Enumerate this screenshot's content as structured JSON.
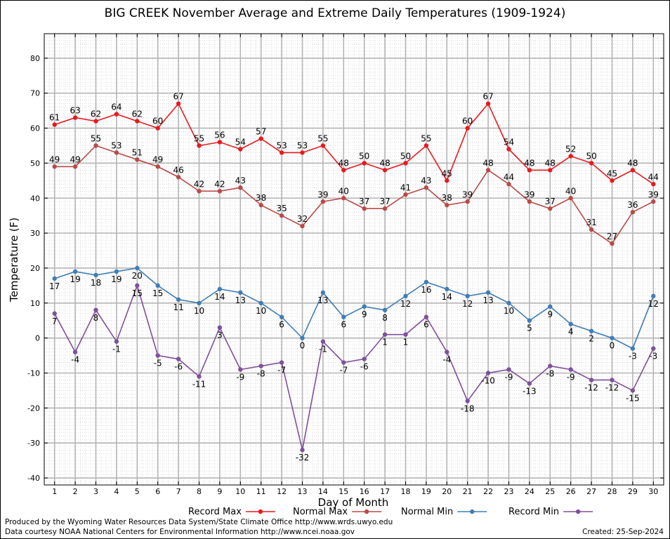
{
  "chart_data": {
    "type": "line",
    "title": "BIG CREEK November Average and Extreme Daily Temperatures (1909-1924)",
    "xlabel": "Day of Month",
    "ylabel": "Temperature (F)",
    "xlim": [
      0.5,
      30.5
    ],
    "ylim": [
      -42,
      87
    ],
    "y_ticks": [
      80,
      70,
      60,
      50,
      40,
      30,
      20,
      10,
      0,
      -10,
      -20,
      -30,
      -40
    ],
    "x": [
      1,
      2,
      3,
      4,
      5,
      6,
      7,
      8,
      9,
      10,
      11,
      12,
      13,
      14,
      15,
      16,
      17,
      18,
      19,
      20,
      21,
      22,
      23,
      24,
      25,
      26,
      27,
      28,
      29,
      30
    ],
    "grid": true,
    "legend_position": "bottom",
    "series": [
      {
        "name": "Record Max",
        "color": "#e8191e",
        "label_pos": "above",
        "values": [
          61,
          63,
          62,
          64,
          62,
          60,
          67,
          55,
          56,
          54,
          57,
          53,
          53,
          55,
          48,
          50,
          48,
          50,
          55,
          45,
          60,
          67,
          54,
          48,
          48,
          52,
          50,
          45,
          48,
          44
        ]
      },
      {
        "name": "Normal Max",
        "color": "#b84a48",
        "label_pos": "above",
        "values": [
          49,
          49,
          55,
          53,
          51,
          49,
          46,
          42,
          42,
          43,
          38,
          35,
          32,
          39,
          40,
          37,
          37,
          41,
          43,
          38,
          39,
          48,
          44,
          39,
          37,
          40,
          31,
          27,
          36,
          39
        ]
      },
      {
        "name": "Normal Min",
        "color": "#3f7db7",
        "label_pos": "below",
        "values": [
          17,
          19,
          18,
          19,
          20,
          15,
          11,
          10,
          14,
          13,
          10,
          6,
          0,
          13,
          6,
          9,
          8,
          12,
          16,
          14,
          12,
          13,
          10,
          5,
          9,
          4,
          2,
          0,
          -3,
          12
        ]
      },
      {
        "name": "Record Min",
        "color": "#7f509c",
        "label_pos": "below",
        "values": [
          7,
          -4,
          8,
          -1,
          15,
          -5,
          -6,
          -11,
          3,
          -9,
          -8,
          -7,
          -32,
          -1,
          -7,
          -6,
          1,
          1,
          6,
          -4,
          -18,
          -10,
          -9,
          -13,
          -8,
          -9,
          -12,
          -12,
          -15,
          -3
        ]
      }
    ]
  },
  "footer": {
    "line1": "Produced by the Wyoming Water Resources Data System/State Climate Office http://www.wrds.uwyo.edu",
    "line2": "Data courtesy NOAA National Centers for Environmental Information http://www.ncei.noaa.gov",
    "created": "Created:  25-Sep-2024"
  }
}
